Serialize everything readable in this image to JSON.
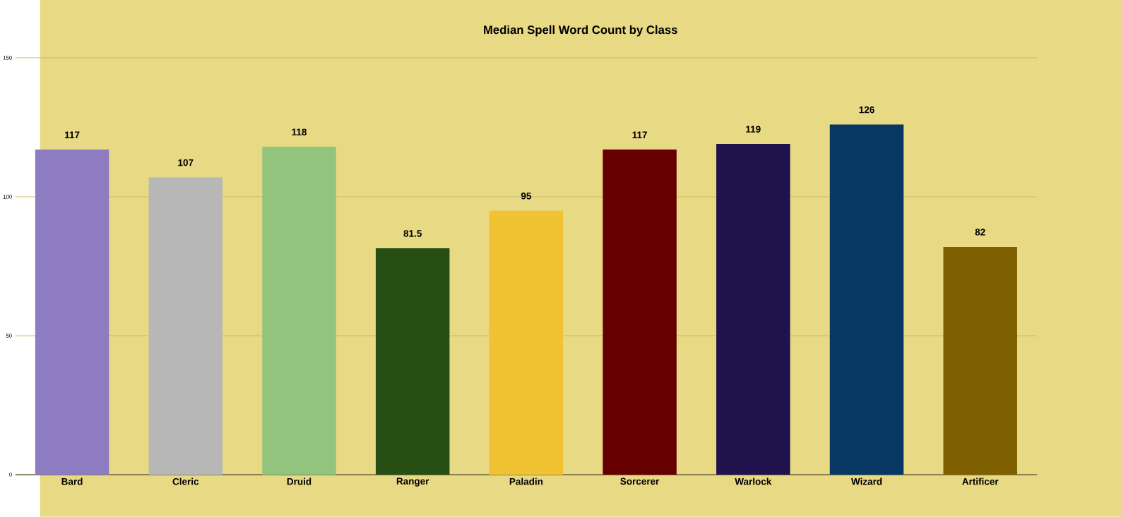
{
  "chart_data": {
    "type": "bar",
    "title": "Median Spell Word Count by Class",
    "categories": [
      "Bard",
      "Cleric",
      "Druid",
      "Ranger",
      "Paladin",
      "Sorcerer",
      "Warlock",
      "Wizard",
      "Artificer"
    ],
    "values": [
      117,
      107,
      118,
      81.5,
      95,
      117,
      119,
      126,
      82
    ],
    "colors": [
      "#8e7cc3",
      "#b7b7b7",
      "#93c47d",
      "#274e13",
      "#f1c232",
      "#660000",
      "#20124d",
      "#073763",
      "#7f6000"
    ],
    "ylim": [
      0,
      150
    ],
    "yticks": [
      0,
      50,
      100,
      150
    ],
    "grid": "y",
    "data_labels": true
  }
}
